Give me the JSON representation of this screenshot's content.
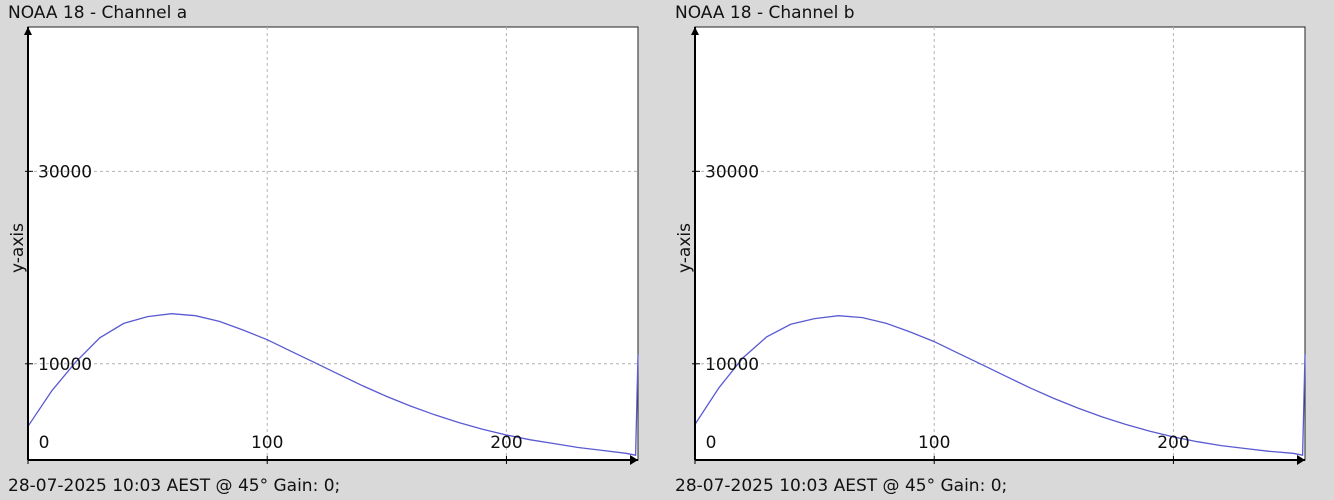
{
  "panels": [
    {
      "title": "NOAA 18 - Channel a",
      "ylabel": "y-axis",
      "footer": "28-07-2025 10:03 AEST @ 45° Gain: 0;"
    },
    {
      "title": "NOAA 18 - Channel b",
      "ylabel": "y-axis",
      "footer": "28-07-2025 10:03 AEST @ 45° Gain: 0;"
    }
  ],
  "colors": {
    "series": "#5a5ad2",
    "background": "#d9d9d9",
    "plot_area": "#ffffff",
    "grid": "#b4b4b4"
  },
  "chart_data": [
    {
      "type": "line",
      "title": "NOAA 18 - Channel a",
      "xlabel": "",
      "ylabel": "y-axis",
      "xlim": [
        0,
        255
      ],
      "ylim": [
        0,
        45000
      ],
      "x_ticks": [
        0,
        100,
        200
      ],
      "y_ticks": [
        10000,
        30000
      ],
      "grid": true,
      "legend": "none",
      "series": [
        {
          "x": [
            0,
            10,
            20,
            30,
            40,
            50,
            60,
            70,
            80,
            90,
            100,
            110,
            120,
            130,
            140,
            150,
            160,
            170,
            180,
            190,
            200,
            210,
            220,
            230,
            240,
            250,
            254,
            255
          ],
          "values": [
            3500,
            7200,
            10200,
            12700,
            14200,
            14900,
            15200,
            15000,
            14400,
            13500,
            12500,
            11300,
            10100,
            8900,
            7700,
            6600,
            5600,
            4700,
            3900,
            3200,
            2600,
            2100,
            1700,
            1300,
            1000,
            700,
            500,
            11000
          ]
        }
      ]
    },
    {
      "type": "line",
      "title": "NOAA 18 - Channel b",
      "xlabel": "",
      "ylabel": "y-axis",
      "xlim": [
        0,
        255
      ],
      "ylim": [
        0,
        45000
      ],
      "x_ticks": [
        0,
        100,
        200
      ],
      "y_ticks": [
        10000,
        30000
      ],
      "grid": true,
      "legend": "none",
      "series": [
        {
          "x": [
            0,
            10,
            20,
            30,
            40,
            50,
            60,
            70,
            80,
            90,
            100,
            110,
            120,
            130,
            140,
            150,
            160,
            170,
            180,
            190,
            200,
            210,
            220,
            230,
            240,
            250,
            254,
            255
          ],
          "values": [
            3700,
            7500,
            10600,
            12800,
            14100,
            14700,
            15000,
            14800,
            14200,
            13300,
            12300,
            11100,
            9900,
            8700,
            7500,
            6400,
            5400,
            4500,
            3700,
            3000,
            2400,
            1900,
            1500,
            1200,
            900,
            700,
            500,
            11000
          ]
        }
      ]
    }
  ]
}
